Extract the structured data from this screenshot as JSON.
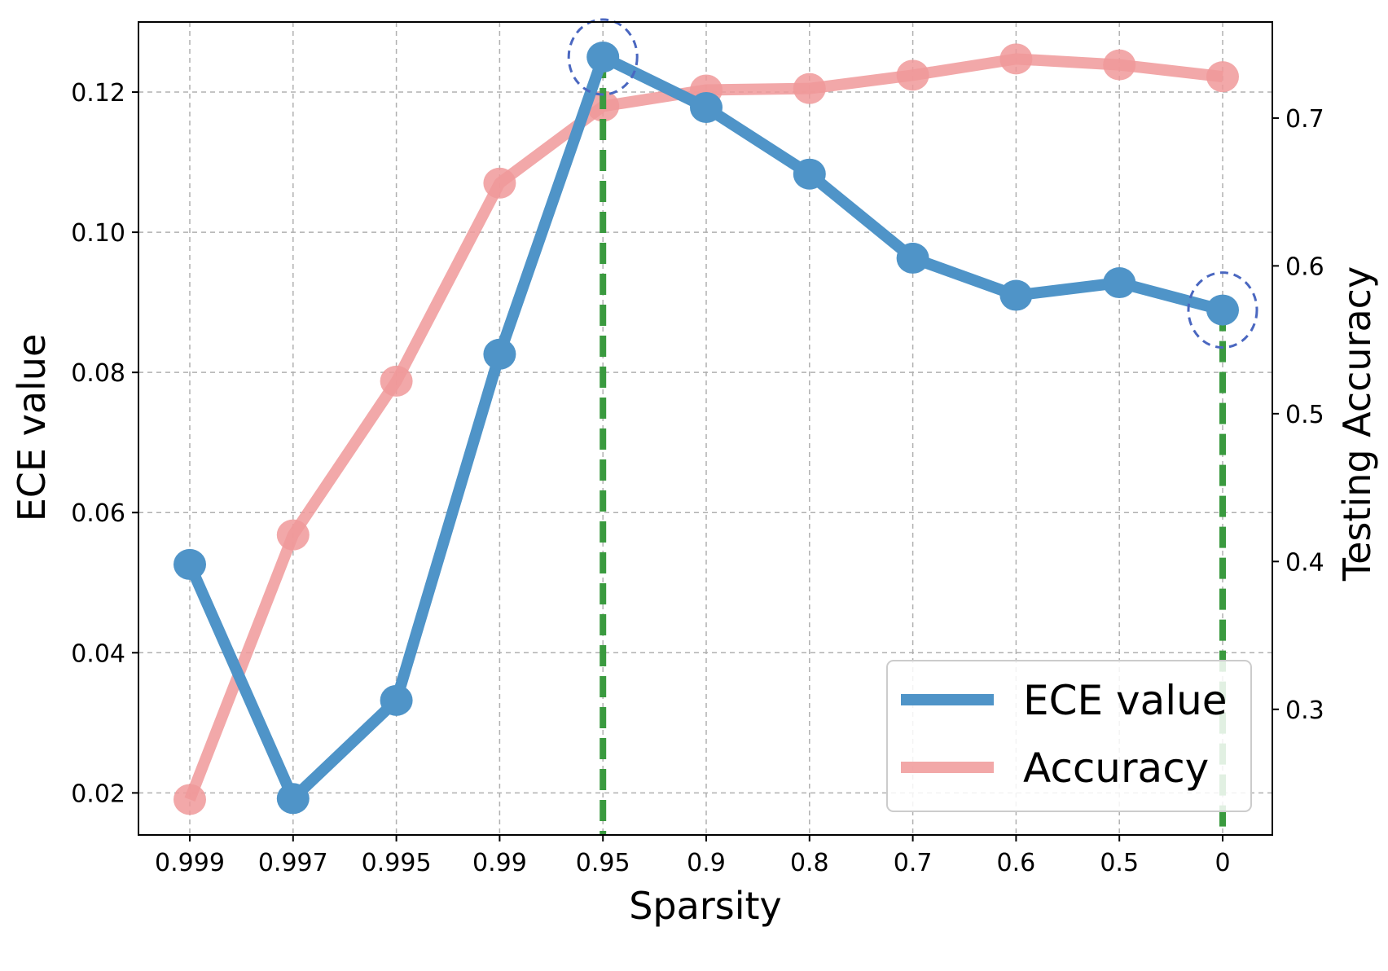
{
  "chart_data": {
    "type": "line",
    "categories": [
      "0.999",
      "0.997",
      "0.995",
      "0.99",
      "0.95",
      "0.9",
      "0.8",
      "0.7",
      "0.6",
      "0.5",
      "0"
    ],
    "xlabel": "Sparsity",
    "ylabel": "ECE value",
    "y2label": "Testing Accuracy",
    "ylim": [
      0.014,
      0.13
    ],
    "y2lim": [
      0.215,
      0.765
    ],
    "yticks": [
      "0.02",
      "0.04",
      "0.06",
      "0.08",
      "0.10",
      "0.12"
    ],
    "y2ticks": [
      "0.3",
      "0.4",
      "0.5",
      "0.6",
      "0.7"
    ],
    "grid": true,
    "legend_position": "lower right",
    "series": [
      {
        "name": "ECE value",
        "axis": "left",
        "color": "#4f94c8",
        "values": [
          0.0526,
          0.0192,
          0.0332,
          0.0826,
          0.125,
          0.1178,
          0.1083,
          0.0963,
          0.091,
          0.0928,
          0.0889
        ]
      },
      {
        "name": "Accuracy",
        "axis": "right",
        "color": "#f0999a",
        "values": [
          0.239,
          0.418,
          0.522,
          0.656,
          0.708,
          0.719,
          0.72,
          0.729,
          0.74,
          0.736,
          0.728
        ]
      }
    ],
    "highlights": [
      {
        "category": "0.95",
        "series": "ECE value",
        "marker": "dashed-circle",
        "vline_color": "#3a9a3f"
      },
      {
        "category": "0",
        "series": "ECE value",
        "marker": "dashed-circle",
        "vline_color": "#3a9a3f"
      }
    ]
  }
}
